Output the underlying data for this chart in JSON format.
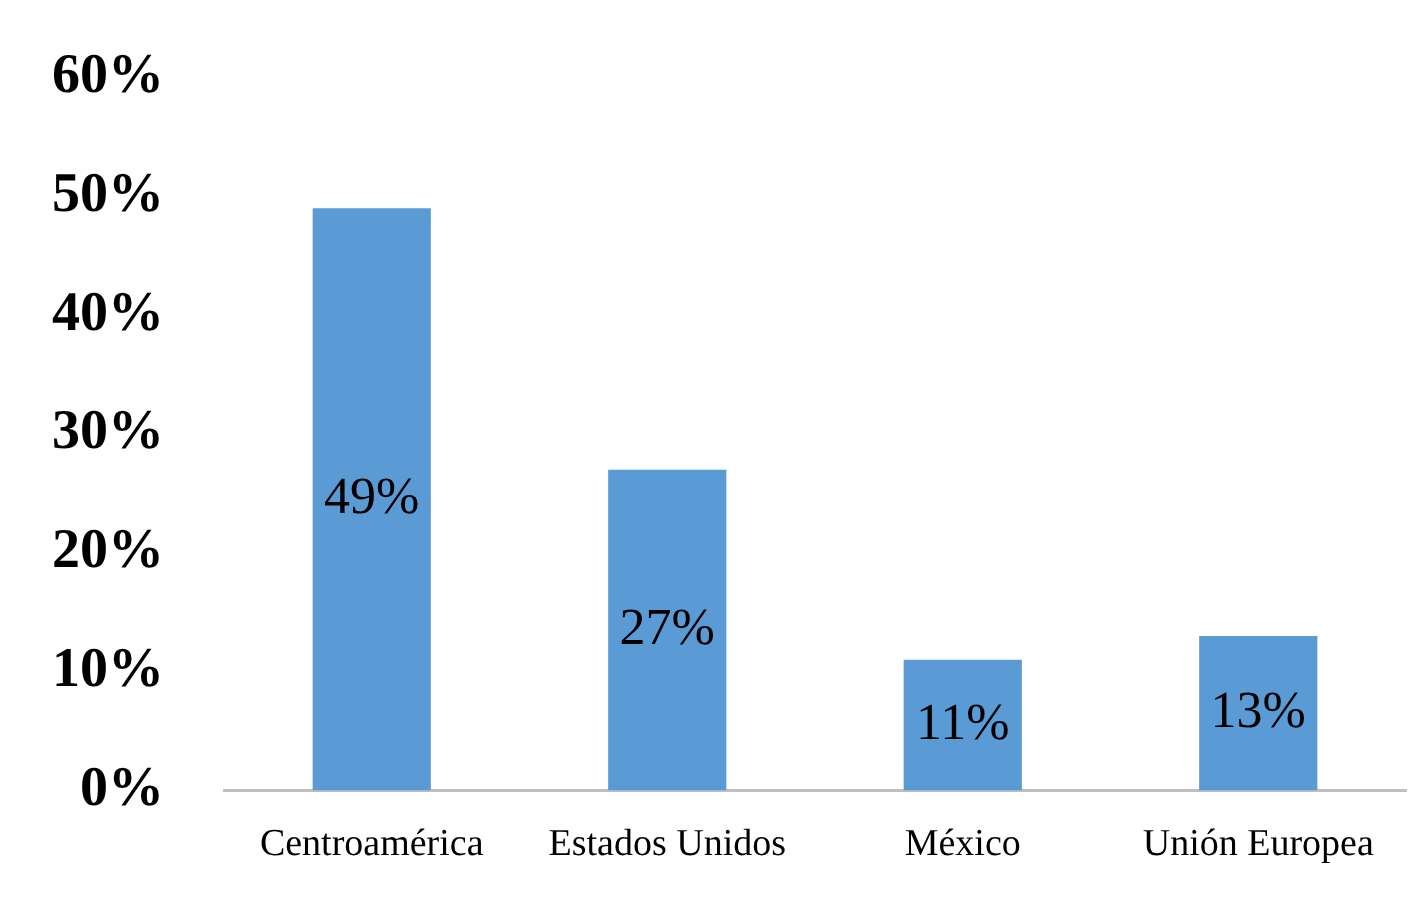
{
  "chart_data": {
    "type": "bar",
    "categories": [
      "Centroamérica",
      "Estados Unidos",
      "México",
      "Unión Europea"
    ],
    "values": [
      49,
      27,
      11,
      13
    ],
    "value_labels": [
      "49%",
      "27%",
      "11%",
      "13%"
    ],
    "color": "#5b9bd5",
    "ylim": [
      0,
      60
    ],
    "yticks": [
      {
        "value": 0,
        "label": "0%"
      },
      {
        "value": 10,
        "label": "10%"
      },
      {
        "value": 20,
        "label": "20%"
      },
      {
        "value": 30,
        "label": "30%"
      },
      {
        "value": 40,
        "label": "40%"
      },
      {
        "value": 50,
        "label": "50%"
      },
      {
        "value": 60,
        "label": "60%"
      }
    ]
  }
}
